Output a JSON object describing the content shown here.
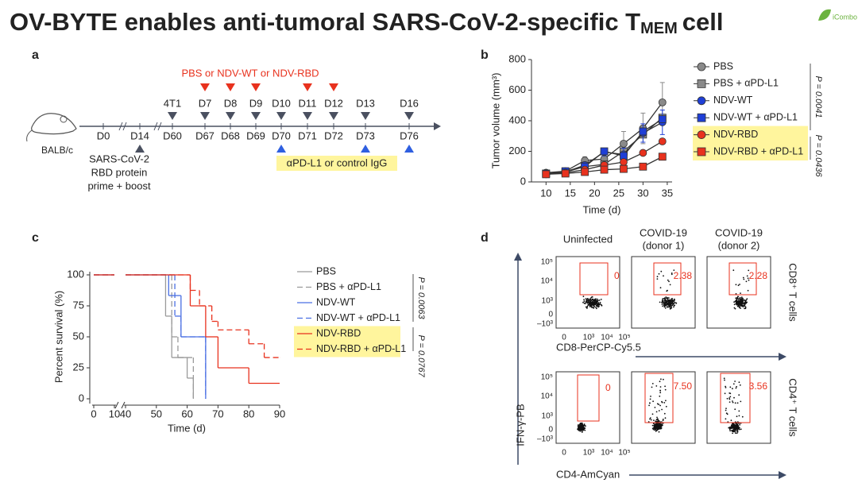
{
  "title": {
    "main": "OV-BYTE enables anti-tumoral SARS-CoV-2-specific T",
    "sub": "MEM",
    "end": "cell"
  },
  "logo": "iCombo",
  "panels": [
    "a",
    "b",
    "c",
    "d"
  ],
  "timeline": {
    "host": "BALB/c",
    "treatment": "PBS or NDV-WT or NDV-RBD",
    "antibody": "αPD-L1 or control IgG",
    "vaccine": [
      "SARS-CoV-2",
      "RBD protein",
      "prime + boost"
    ],
    "points": [
      {
        "bottom": "D0"
      },
      {
        "bottom": "D14"
      },
      {
        "top": "4T1",
        "bottom": "D60"
      },
      {
        "top": "D7",
        "bottom": "D67"
      },
      {
        "top": "D8",
        "bottom": "D68"
      },
      {
        "top": "D9",
        "bottom": "D69"
      },
      {
        "top": "D10",
        "bottom": "D70"
      },
      {
        "top": "D11",
        "bottom": "D71"
      },
      {
        "top": "D12",
        "bottom": "D72"
      },
      {
        "top": "D13",
        "bottom": "D73"
      },
      {
        "top": "D16",
        "bottom": "D76"
      }
    ]
  },
  "chart_data": [
    {
      "type": "line",
      "xlabel": "Time (d)",
      "ylabel": "Tumor volume (mm³)",
      "x": [
        10,
        14,
        18,
        22,
        26,
        30,
        34
      ],
      "xlim": [
        7,
        36
      ],
      "xticks": [
        10,
        15,
        20,
        25,
        30,
        35
      ],
      "ylim": [
        0,
        800
      ],
      "yticks": [
        0,
        200,
        400,
        600,
        800
      ],
      "p_values": [
        "P = 0.0041",
        "P = 0.0436"
      ],
      "series": [
        {
          "name": "PBS",
          "color": "#8a8a8a",
          "marker": "circle",
          "values": [
            60,
            70,
            140,
            150,
            250,
            350,
            520
          ],
          "errors": [
            10,
            12,
            25,
            20,
            80,
            100,
            130
          ]
        },
        {
          "name": "PBS + αPD-L1",
          "color": "#8a8a8a",
          "marker": "square",
          "values": [
            55,
            65,
            100,
            115,
            200,
            310,
            420
          ]
        },
        {
          "name": "NDV-WT",
          "color": "#1f3fd6",
          "marker": "circle",
          "values": [
            55,
            65,
            110,
            195,
            180,
            320,
            390
          ],
          "errors": [
            8,
            10,
            20,
            25,
            40,
            60,
            80
          ]
        },
        {
          "name": "NDV-WT + αPD-L1",
          "color": "#1f3fd6",
          "marker": "square",
          "values": [
            55,
            70,
            100,
            200,
            170,
            330,
            410
          ]
        },
        {
          "name": "NDV-RBD",
          "color": "#e8321e",
          "marker": "circle",
          "highlight": true,
          "values": [
            50,
            60,
            80,
            110,
            130,
            190,
            265
          ]
        },
        {
          "name": "NDV-RBD + αPD-L1",
          "color": "#e8321e",
          "marker": "square",
          "highlight": true,
          "values": [
            50,
            55,
            65,
            80,
            85,
            100,
            165
          ]
        }
      ]
    },
    {
      "type": "step",
      "xlabel": "Time (d)",
      "ylabel": "Percent survival (%)",
      "xlim": [
        0,
        90
      ],
      "x_break": [
        10,
        40
      ],
      "xticks": [
        0,
        10,
        40,
        50,
        60,
        70,
        80,
        90
      ],
      "ylim": [
        0,
        100
      ],
      "yticks": [
        0,
        25,
        50,
        75,
        100
      ],
      "p_values": [
        "P = 0.0063",
        "P = 0.0767"
      ],
      "series": [
        {
          "name": "PBS",
          "color": "#9a9a9a",
          "dash": false,
          "x": [
            0,
            53,
            55,
            60,
            62
          ],
          "values": [
            100,
            66.7,
            33.3,
            16.7,
            0
          ]
        },
        {
          "name": "PBS + αPD-L1",
          "color": "#9a9a9a",
          "dash": true,
          "x": [
            0,
            55,
            57,
            62
          ],
          "values": [
            100,
            50,
            33.3,
            0
          ]
        },
        {
          "name": "NDV-WT",
          "color": "#4a6fe3",
          "dash": false,
          "x": [
            0,
            54,
            58,
            66
          ],
          "values": [
            100,
            83.3,
            50,
            0
          ]
        },
        {
          "name": "NDV-WT + αPD-L1",
          "color": "#4a6fe3",
          "dash": true,
          "x": [
            0,
            56,
            58,
            66
          ],
          "values": [
            100,
            66.7,
            50,
            0
          ]
        },
        {
          "name": "NDV-RBD",
          "color": "#e8321e",
          "dash": false,
          "highlight": true,
          "x": [
            0,
            61,
            66,
            70,
            80,
            90
          ],
          "values": [
            100,
            75,
            50,
            25,
            12.5,
            12.5
          ]
        },
        {
          "name": "NDV-RBD + αPD-L1",
          "color": "#e8321e",
          "dash": true,
          "highlight": true,
          "x": [
            0,
            61,
            64,
            68,
            70,
            80,
            85,
            90
          ],
          "values": [
            100,
            87.5,
            75,
            62.5,
            55.6,
            44.4,
            33.3,
            33.3
          ]
        }
      ]
    }
  ],
  "flow": {
    "columns": [
      [
        "Uninfected"
      ],
      [
        "COVID-19",
        "(donor 1)"
      ],
      [
        "COVID-19",
        "(donor 2)"
      ]
    ],
    "ylabel": "IFN-γ-PB",
    "yticks": [
      "10⁵",
      "10⁴",
      "10³",
      "0",
      "–10³"
    ],
    "xticks": [
      "0",
      "10³",
      "10⁴",
      "10⁵"
    ],
    "rows": [
      {
        "label": "CD8⁺ T cells",
        "xlabel": "CD8-PerCP-Cy5.5",
        "gates": [
          "0",
          "2.38",
          "2.28"
        ]
      },
      {
        "label": "CD4⁺ T cells",
        "xlabel": "CD4-AmCyan",
        "gates": [
          "0",
          "7.50",
          "3.56"
        ]
      }
    ]
  }
}
